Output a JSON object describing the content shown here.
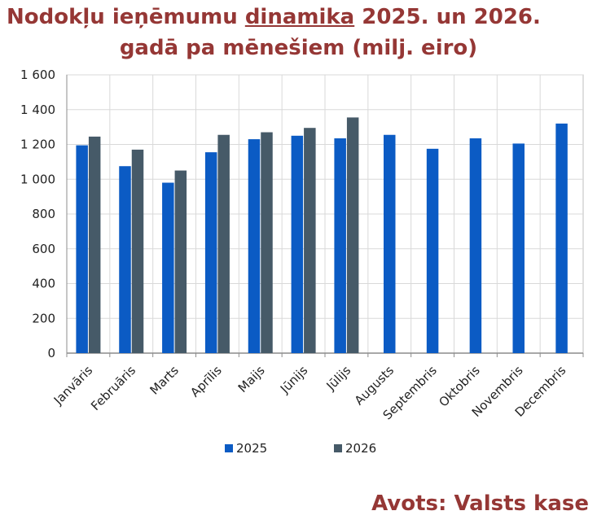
{
  "title": {
    "line1_pre": "Nodokļu ieņēmumu ",
    "line1_underlined": "dinamika",
    "line1_post": " 2025. un 2026.",
    "line2": "gadā pa mēnešiem (milj. eiro)"
  },
  "source": "Avots: Valsts kase",
  "colors": {
    "title": "#953735",
    "series_2025": "#0B5BC4",
    "series_2026": "#465A68",
    "grid": "#D9D9D9"
  },
  "chart_data": {
    "type": "bar",
    "title": "Nodokļu ieņēmumu dinamika 2025. un 2026. gadā pa mēnešiem (milj. eiro)",
    "categories": [
      "Janvāris",
      "Februāris",
      "Marts",
      "Aprīlis",
      "Maijs",
      "Jūnijs",
      "Jūlijs",
      "Augusts",
      "Septembris",
      "Oktobris",
      "Novembris",
      "Decembris"
    ],
    "series": [
      {
        "name": "2025",
        "values": [
          1195,
          1075,
          980,
          1155,
          1230,
          1250,
          1235,
          1255,
          1175,
          1235,
          1205,
          1320
        ]
      },
      {
        "name": "2026",
        "values": [
          1245,
          1170,
          1050,
          1255,
          1270,
          1295,
          1355,
          null,
          null,
          null,
          null,
          null
        ]
      }
    ],
    "ylim": [
      0,
      1600
    ],
    "yticks": [
      0,
      200,
      400,
      600,
      800,
      1000,
      1200,
      1400,
      1600
    ],
    "ytick_labels": [
      "0",
      "200",
      "400",
      "600",
      "800",
      "1 000",
      "1 200",
      "1 400",
      "1 600"
    ],
    "grid": true,
    "legend_position": "bottom"
  }
}
